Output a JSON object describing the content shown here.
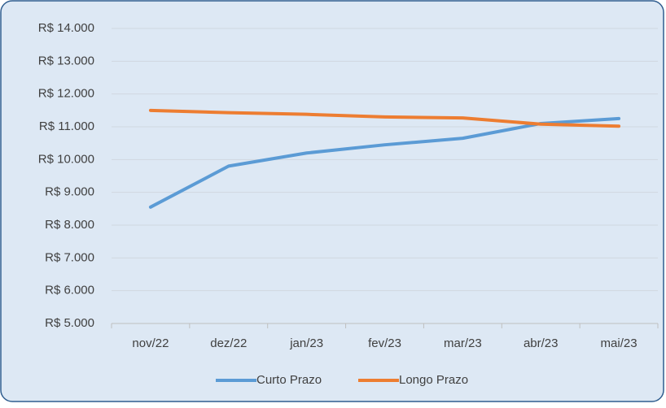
{
  "chart_data": {
    "type": "line",
    "categories": [
      "nov/22",
      "dez/22",
      "jan/23",
      "fev/23",
      "mar/23",
      "abr/23",
      "mai/23"
    ],
    "series": [
      {
        "name": "Curto Prazo",
        "color": "#5b9bd5",
        "values": [
          8550,
          9800,
          10200,
          10450,
          10650,
          11100,
          11250
        ]
      },
      {
        "name": "Longo Prazo",
        "color": "#ed7d31",
        "values": [
          11500,
          11430,
          11380,
          11300,
          11270,
          11080,
          11020
        ]
      }
    ],
    "ylim": [
      5000,
      14000
    ],
    "yticks": [
      {
        "value": 5000,
        "label": "R$ 5.000"
      },
      {
        "value": 6000,
        "label": "R$ 6.000"
      },
      {
        "value": 7000,
        "label": "R$ 7.000"
      },
      {
        "value": 8000,
        "label": "R$ 8.000"
      },
      {
        "value": 9000,
        "label": "R$ 9.000"
      },
      {
        "value": 10000,
        "label": "R$ 10.000"
      },
      {
        "value": 11000,
        "label": "R$ 11.000"
      },
      {
        "value": 12000,
        "label": "R$ 12.000"
      },
      {
        "value": 13000,
        "label": "R$ 13.000"
      },
      {
        "value": 14000,
        "label": "R$ 14.000"
      }
    ],
    "grid": true,
    "legend": "bottom"
  }
}
